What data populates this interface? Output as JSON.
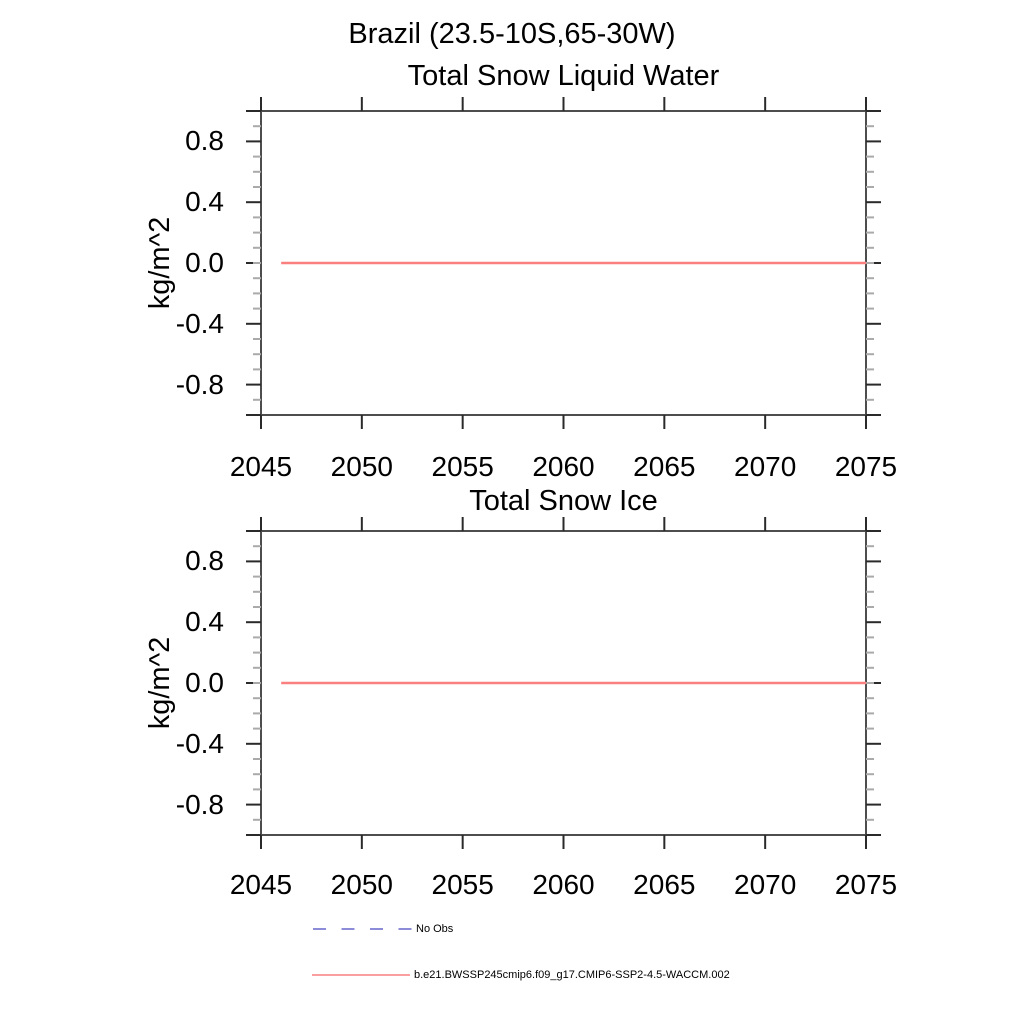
{
  "figure": {
    "title": "Brazil (23.5-10S,65-30W)"
  },
  "panels": [
    {
      "title": "Total Snow Liquid Water",
      "ylabel": "kg/m^2",
      "x_ticks": {
        "labels": [
          "2045",
          "2050",
          "2055",
          "2060",
          "2065",
          "2070",
          "2075"
        ],
        "values": [
          2045,
          2050,
          2055,
          2060,
          2065,
          2070,
          2075
        ]
      },
      "y_ticks": {
        "labels": [
          "0.8",
          "0.4",
          "0.0",
          "-0.4",
          "-0.8"
        ],
        "values": [
          0.8,
          0.4,
          0.0,
          -0.4,
          -0.8
        ]
      },
      "y_major_ticks": [
        1.0,
        0.8,
        0.4,
        0.0,
        -0.4,
        -0.8,
        -1.0
      ],
      "y_minor_step": 0.1,
      "xlim": [
        2045,
        2075
      ],
      "ylim": [
        -1.0,
        1.0
      ]
    },
    {
      "title": "Total Snow Ice",
      "ylabel": "kg/m^2",
      "x_ticks": {
        "labels": [
          "2045",
          "2050",
          "2055",
          "2060",
          "2065",
          "2070",
          "2075"
        ],
        "values": [
          2045,
          2050,
          2055,
          2060,
          2065,
          2070,
          2075
        ]
      },
      "y_ticks": {
        "labels": [
          "0.8",
          "0.4",
          "0.0",
          "-0.4",
          "-0.8"
        ],
        "values": [
          0.8,
          0.4,
          0.0,
          -0.4,
          -0.8
        ]
      },
      "y_major_ticks": [
        1.0,
        0.8,
        0.4,
        0.0,
        -0.4,
        -0.8,
        -1.0
      ],
      "y_minor_step": 0.1,
      "xlim": [
        2045,
        2075
      ],
      "ylim": [
        -1.0,
        1.0
      ]
    }
  ],
  "legend": {
    "items": [
      {
        "label": "No Obs",
        "color": "#6666cc",
        "style": "dashed"
      },
      {
        "label": "b.e21.BWSSP245cmip6.f09_g17.CMIP6-SSP2-4.5-WACCM.002",
        "color": "#fa8080",
        "style": "solid"
      }
    ]
  },
  "colors": {
    "border": "#4d4d4d",
    "major_tick": "#2a2a2a",
    "minor_tick": "#aaaaaa",
    "line_red": "#fa8080",
    "line_blue_dashed": "#6666cc",
    "text": "#000000",
    "background": "#ffffff"
  },
  "chart_data": [
    {
      "type": "line",
      "suptitle": "Brazil (23.5-10S,65-30W)",
      "title": "Total Snow Liquid Water",
      "xlabel": "",
      "ylabel": "kg/m^2",
      "xlim": [
        2045,
        2075
      ],
      "ylim": [
        -1.0,
        1.0
      ],
      "x_ticks": [
        2045,
        2050,
        2055,
        2060,
        2065,
        2070,
        2075
      ],
      "y_ticks": [
        0.8,
        0.4,
        0.0,
        -0.4,
        -0.8
      ],
      "grid": false,
      "legend_position": "below-figure",
      "series": [
        {
          "name": "No Obs",
          "color": "#6666cc",
          "line_style": "dashed",
          "plotted": false
        },
        {
          "name": "b.e21.BWSSP245cmip6.f09_g17.CMIP6-SSP2-4.5-WACCM.002",
          "color": "#fa8080",
          "line_style": "solid",
          "x_start": 2046,
          "x_end": 2075,
          "constant_value": 0.0
        }
      ]
    },
    {
      "type": "line",
      "suptitle": "Brazil (23.5-10S,65-30W)",
      "title": "Total Snow Ice",
      "xlabel": "",
      "ylabel": "kg/m^2",
      "xlim": [
        2045,
        2075
      ],
      "ylim": [
        -1.0,
        1.0
      ],
      "x_ticks": [
        2045,
        2050,
        2055,
        2060,
        2065,
        2070,
        2075
      ],
      "y_ticks": [
        0.8,
        0.4,
        0.0,
        -0.4,
        -0.8
      ],
      "grid": false,
      "legend_position": "below-figure",
      "series": [
        {
          "name": "No Obs",
          "color": "#6666cc",
          "line_style": "dashed",
          "plotted": false
        },
        {
          "name": "b.e21.BWSSP245cmip6.f09_g17.CMIP6-SSP2-4.5-WACCM.002",
          "color": "#fa8080",
          "line_style": "solid",
          "x_start": 2046,
          "x_end": 2075,
          "constant_value": 0.0
        }
      ]
    }
  ]
}
